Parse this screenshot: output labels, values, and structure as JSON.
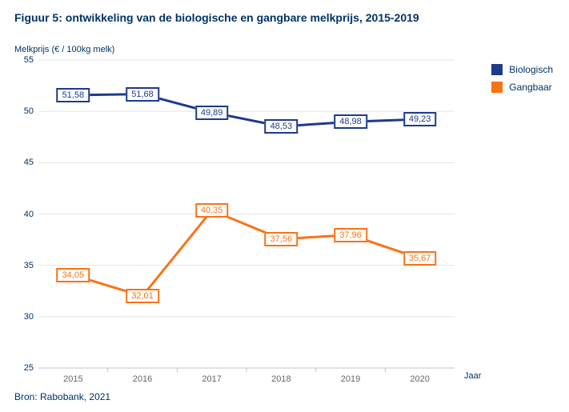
{
  "title": "Figuur 5: ontwikkeling van de biologische en gangbare melkprijs, 2015-2019",
  "ylabel": "Melkprijs (€ / 100kg melk)",
  "xlabel": "Jaar",
  "source": "Bron: Rabobank, 2021",
  "chart": {
    "type": "line",
    "ylim": [
      25,
      55
    ],
    "ytick_step": 5,
    "yticks": [
      25,
      30,
      35,
      40,
      45,
      50,
      55
    ],
    "categories": [
      "2015",
      "2016",
      "2017",
      "2018",
      "2019",
      "2020"
    ],
    "background_color": "#ffffff",
    "grid_color": "#e2e6ea",
    "axis_color": "#bcc5cc",
    "line_width": 3,
    "marker_size": 5,
    "decimal_sep": ",",
    "series": [
      {
        "name": "Biologisch",
        "color": "#1e3a8a",
        "values": [
          51.58,
          51.68,
          49.89,
          48.53,
          48.98,
          49.23
        ]
      },
      {
        "name": "Gangbaar",
        "color": "#f97316",
        "values": [
          34.05,
          32.01,
          40.35,
          37.56,
          37.96,
          35.67
        ]
      }
    ]
  },
  "legend": {
    "items": [
      {
        "label": "Biologisch",
        "color": "#1e3a8a"
      },
      {
        "label": "Gangbaar",
        "color": "#f97316"
      }
    ]
  },
  "typography": {
    "title_fontsize": 14,
    "label_fontsize": 11,
    "tick_fontsize": 11,
    "legend_fontsize": 12
  }
}
